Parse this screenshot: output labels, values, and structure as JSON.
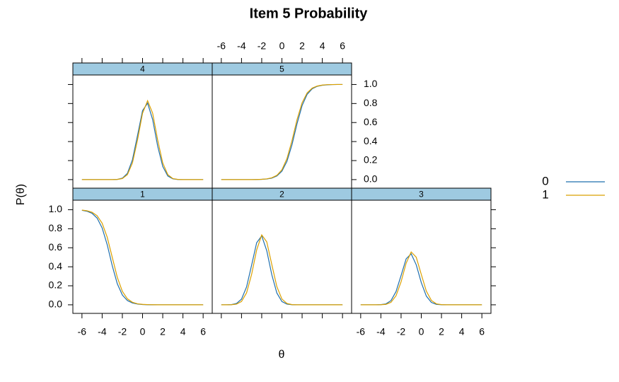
{
  "chart_data": {
    "type": "line",
    "title": "Item 5 Probability",
    "x_label": "θ",
    "y_label": "P(θ)",
    "xlim": [
      -6.9,
      6.9
    ],
    "ylim": [
      -0.09,
      1.1
    ],
    "xticks": [
      -6,
      -4,
      -2,
      0,
      2,
      4,
      6
    ],
    "yticks": [
      {
        "value": 0,
        "label": "0.0"
      },
      {
        "value": 0.2,
        "label": "0.2"
      },
      {
        "value": 0.4,
        "label": "0.4"
      },
      {
        "value": 0.6,
        "label": "0.6"
      },
      {
        "value": 0.8,
        "label": "0.8"
      },
      {
        "value": 1,
        "label": "1.0"
      }
    ],
    "x": [
      -6,
      -5.5,
      -5,
      -4.5,
      -4,
      -3.5,
      -3,
      -2.5,
      -2,
      -1.5,
      -1,
      -0.5,
      0,
      0.5,
      1,
      1.5,
      2,
      2.5,
      3,
      3.5,
      4,
      4.5,
      5,
      5.5,
      6
    ],
    "panels": [
      {
        "label": "1",
        "series": [
          {
            "name": "0",
            "color": "#1f6fae",
            "values": [
              0.994,
              0.984,
              0.962,
              0.912,
              0.808,
              0.632,
              0.411,
              0.221,
              0.103,
              0.045,
              0.019,
              0.008,
              0.003,
              0.001,
              0,
              0,
              0,
              0,
              0,
              0,
              0,
              0,
              0,
              0,
              0
            ]
          },
          {
            "name": "1",
            "color": "#dba000",
            "values": [
              0.996,
              0.989,
              0.973,
              0.937,
              0.858,
              0.711,
              0.5,
              0.289,
              0.142,
              0.063,
              0.027,
              0.011,
              0.005,
              0.002,
              0.001,
              0,
              0,
              0,
              0,
              0,
              0,
              0,
              0,
              0,
              0
            ]
          }
        ]
      },
      {
        "label": "2",
        "series": [
          {
            "name": "0",
            "color": "#1f6fae",
            "values": [
              0,
              0,
              0.002,
              0.014,
              0.06,
              0.188,
              0.417,
              0.653,
              0.725,
              0.569,
              0.316,
              0.124,
              0.034,
              0.007,
              0.001,
              0,
              0,
              0,
              0,
              0,
              0,
              0,
              0,
              0,
              0
            ]
          },
          {
            "name": "1",
            "color": "#dba000",
            "values": [
              0,
              0,
              0.001,
              0.007,
              0.035,
              0.126,
              0.32,
              0.577,
              0.735,
              0.662,
              0.423,
              0.191,
              0.061,
              0.014,
              0.002,
              0,
              0,
              0,
              0,
              0,
              0,
              0,
              0,
              0,
              0
            ]
          }
        ]
      },
      {
        "label": "3",
        "series": [
          {
            "name": "0",
            "color": "#1f6fae",
            "values": [
              0,
              0,
              0,
              0,
              0.002,
              0.01,
              0.044,
              0.139,
              0.308,
              0.483,
              0.536,
              0.421,
              0.234,
              0.092,
              0.025,
              0.005,
              0.001,
              0,
              0,
              0,
              0,
              0,
              0,
              0,
              0
            ]
          },
          {
            "name": "1",
            "color": "#dba000",
            "values": [
              0,
              0,
              0,
              0,
              0.001,
              0.005,
              0.026,
              0.095,
              0.242,
              0.437,
              0.556,
              0.501,
              0.32,
              0.144,
              0.046,
              0.01,
              0.002,
              0,
              0,
              0,
              0,
              0,
              0,
              0,
              0
            ]
          }
        ]
      },
      {
        "label": "4",
        "series": [
          {
            "name": "0",
            "color": "#1f6fae",
            "values": [
              0,
              0,
              0,
              0,
              0,
              0,
              0,
              0.002,
              0.015,
              0.066,
              0.209,
              0.463,
              0.725,
              0.804,
              0.631,
              0.351,
              0.138,
              0.038,
              0.008,
              0.001,
              0,
              0,
              0,
              0,
              0
            ]
          },
          {
            "name": "1",
            "color": "#dba000",
            "values": [
              0,
              0,
              0,
              0,
              0,
              0,
              0,
              0.002,
              0.011,
              0.052,
              0.175,
              0.416,
              0.698,
              0.83,
              0.698,
              0.416,
              0.175,
              0.052,
              0.011,
              0.002,
              0,
              0,
              0,
              0,
              0
            ]
          }
        ]
      },
      {
        "label": "5",
        "series": [
          {
            "name": "0",
            "color": "#1f6fae",
            "values": [
              0,
              0,
              0,
              0,
              0,
              0,
              0,
              0.001,
              0.003,
              0.006,
              0.016,
              0.038,
              0.088,
              0.192,
              0.368,
              0.589,
              0.779,
              0.897,
              0.955,
              0.981,
              0.992,
              0.997,
              0.999,
              1,
              1
            ]
          },
          {
            "name": "1",
            "color": "#dba000",
            "values": [
              0,
              0,
              0,
              0,
              0,
              0,
              0,
              0.001,
              0.003,
              0.008,
              0.019,
              0.045,
              0.103,
              0.221,
              0.411,
              0.632,
              0.808,
              0.912,
              0.962,
              0.984,
              0.994,
              0.998,
              0.999,
              1,
              1
            ]
          }
        ]
      }
    ]
  }
}
